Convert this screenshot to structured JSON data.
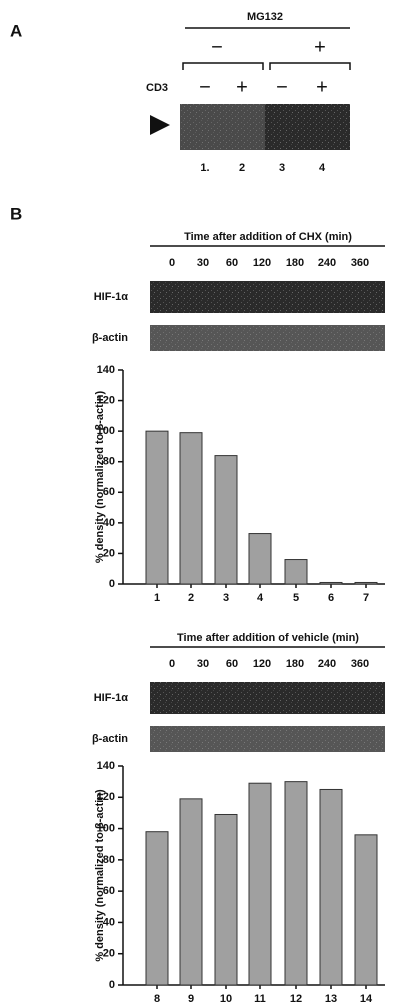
{
  "panels": {
    "a": {
      "label": "A",
      "treatment": "MG132",
      "treatment_levels": [
        "−",
        "+"
      ],
      "row_label": "CD3",
      "cd3_levels": [
        "−",
        "+",
        "−",
        "+"
      ],
      "lanes": [
        "1.",
        "2",
        "3",
        "4"
      ]
    },
    "b": {
      "label": "B"
    }
  },
  "blots": [
    {
      "title": "Time after addition of CHX (min)",
      "times": [
        "0",
        "30",
        "60",
        "120",
        "180",
        "240",
        "360"
      ],
      "rows": [
        "HIF-1α",
        "β-actin"
      ]
    },
    {
      "title": "Time after addition of vehicle (min)",
      "times": [
        "0",
        "30",
        "60",
        "120",
        "180",
        "240",
        "360"
      ],
      "rows": [
        "HIF-1α",
        "β-actin"
      ]
    }
  ],
  "chart_data": [
    {
      "type": "bar",
      "y_label": "% density (normalized to β-actin)",
      "categories": [
        "1",
        "2",
        "3",
        "4",
        "5",
        "6",
        "7"
      ],
      "values": [
        100,
        99,
        84,
        33,
        16,
        1,
        1
      ],
      "color": "#a0a0a0",
      "ylim": [
        0,
        140
      ],
      "yticks": [
        0,
        20,
        40,
        60,
        80,
        100,
        120,
        140
      ]
    },
    {
      "type": "bar",
      "y_label": "% density (normalized to β-actin)",
      "categories": [
        "8",
        "9",
        "10",
        "11",
        "12",
        "13",
        "14"
      ],
      "values": [
        98,
        119,
        109,
        129,
        130,
        125,
        96
      ],
      "color": "#a0a0a0",
      "ylim": [
        0,
        140
      ],
      "yticks": [
        0,
        20,
        40,
        60,
        80,
        100,
        120,
        140
      ]
    }
  ]
}
